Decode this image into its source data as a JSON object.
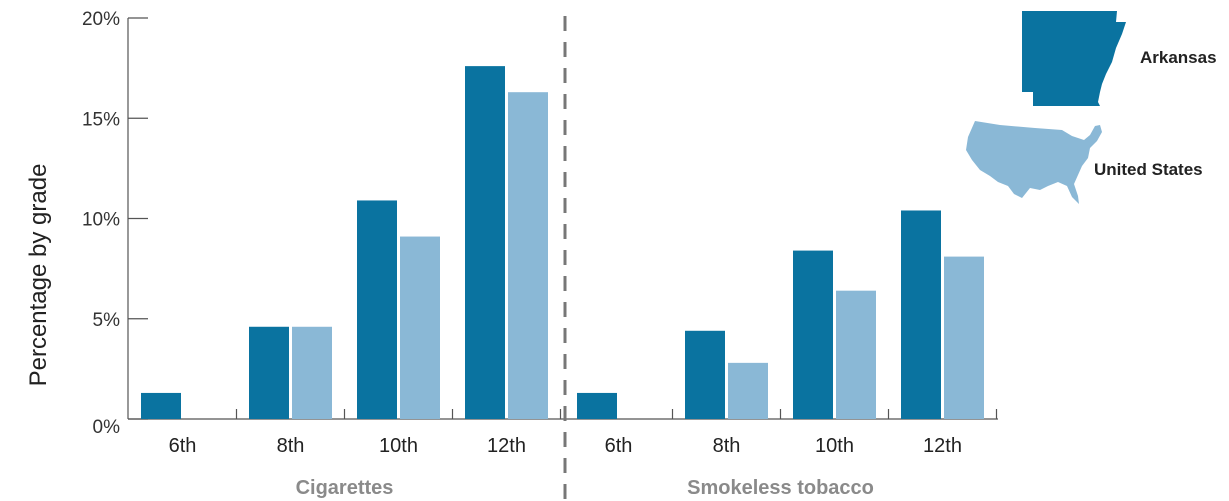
{
  "chart_data": {
    "type": "bar",
    "ylabel": "Percentage by grade",
    "ylim": [
      0,
      20
    ],
    "yticks": [
      "0%",
      "5%",
      "10%",
      "15%",
      "20%"
    ],
    "ytick_values": [
      0,
      5,
      10,
      15,
      20
    ],
    "groups": [
      {
        "name": "Cigarettes",
        "categories": [
          "6th",
          "8th",
          "10th",
          "12th"
        ],
        "series": [
          {
            "name": "Arkansas",
            "values": [
              1.3,
              4.6,
              10.9,
              17.6
            ]
          },
          {
            "name": "United States",
            "values": [
              null,
              4.6,
              9.1,
              16.3
            ]
          }
        ]
      },
      {
        "name": "Smokeless tobacco",
        "categories": [
          "6th",
          "8th",
          "10th",
          "12th"
        ],
        "series": [
          {
            "name": "Arkansas",
            "values": [
              1.3,
              4.4,
              8.4,
              10.4
            ]
          },
          {
            "name": "United States",
            "values": [
              null,
              2.8,
              6.4,
              8.1
            ]
          }
        ]
      }
    ],
    "legend": {
      "placement": "right",
      "entries": [
        {
          "name": "Arkansas",
          "color": "#0a73a0",
          "icon": "arkansas-map-icon"
        },
        {
          "name": "United States",
          "color": "#8ab8d6",
          "icon": "us-map-icon"
        }
      ]
    },
    "grid": false
  }
}
